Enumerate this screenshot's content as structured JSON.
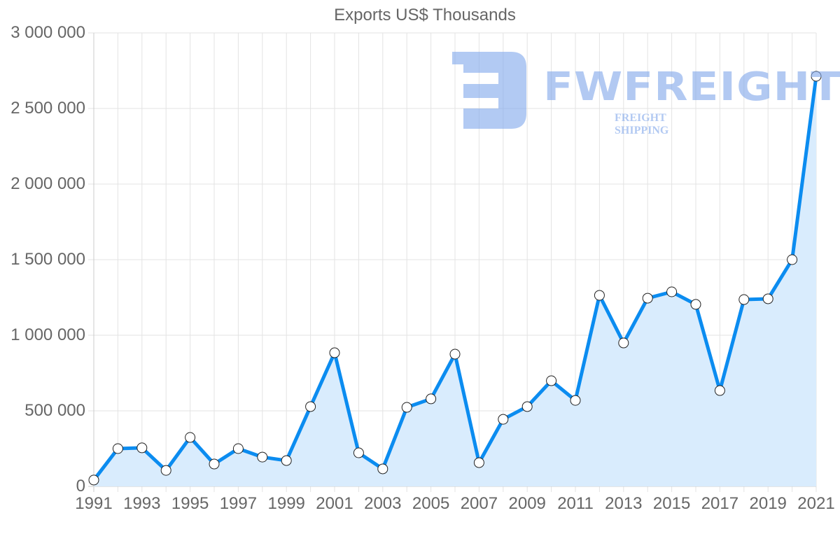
{
  "chart_data": {
    "type": "area",
    "title": "Exports US$ Thousands",
    "xlabel": "",
    "ylabel": "",
    "x": [
      1991,
      1992,
      1993,
      1994,
      1995,
      1996,
      1997,
      1998,
      1999,
      2000,
      2001,
      2002,
      2003,
      2004,
      2005,
      2006,
      2007,
      2008,
      2009,
      2010,
      2011,
      2012,
      2013,
      2014,
      2015,
      2016,
      2017,
      2018,
      2019,
      2020,
      2021
    ],
    "series": [
      {
        "name": "Exports US$ Thousands",
        "values": [
          42000,
          250000,
          255000,
          106000,
          324000,
          148000,
          250000,
          194000,
          171000,
          528000,
          884000,
          222000,
          116000,
          523000,
          579000,
          875000,
          157000,
          444000,
          528000,
          699000,
          569000,
          1264000,
          949000,
          1245000,
          1287000,
          1204000,
          634000,
          1236000,
          1241000,
          1500000,
          2713000
        ]
      }
    ],
    "ylim": [
      0,
      3000000
    ],
    "y_ticks": [
      "0",
      "500 000",
      "1 000 000",
      "1 500 000",
      "2 000 000",
      "2 500 000",
      "3 000 000"
    ],
    "y_tick_values": [
      0,
      500000,
      1000000,
      1500000,
      2000000,
      2500000,
      3000000
    ],
    "x_tick_labels": [
      "1991",
      "1993",
      "1995",
      "1997",
      "1999",
      "2001",
      "2003",
      "2005",
      "2007",
      "2009",
      "2011",
      "2013",
      "2015",
      "2017",
      "2019",
      "2021"
    ],
    "grid": true,
    "legend": "none",
    "colors": {
      "line": "#0b8cf0",
      "fill": "#d9ecfd",
      "point_fill": "#ffffff",
      "point_stroke": "#222222",
      "grid": "#e3e3e3",
      "axis": "#cccccc"
    }
  },
  "watermark": {
    "brand": "FWFREIGHT",
    "tagline": "FREIGHT SHIPPING",
    "color": "#7fa6eb"
  }
}
